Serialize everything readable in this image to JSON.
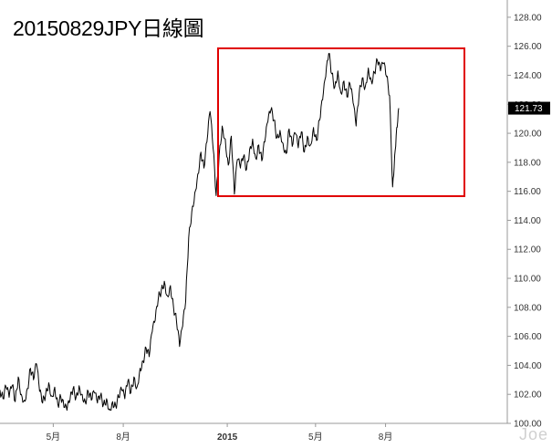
{
  "chart_data": {
    "type": "line",
    "title": "20150829JPY日線圖",
    "last_price_label": "121.73",
    "watermark": "Joe",
    "ylim": [
      100,
      129
    ],
    "y_ticks": [
      "128.00",
      "126.00",
      "124.00",
      "122.00",
      "120.00",
      "118.00",
      "116.00",
      "114.00",
      "112.00",
      "110.00",
      "108.00",
      "106.00",
      "104.00",
      "102.00",
      "100.00"
    ],
    "x_ticks": [
      {
        "label": "5月",
        "t": 0.105,
        "bold": false
      },
      {
        "label": "8月",
        "t": 0.243,
        "bold": false
      },
      {
        "label": "2015",
        "t": 0.448,
        "bold": true
      },
      {
        "label": "5月",
        "t": 0.622,
        "bold": false
      },
      {
        "label": "8月",
        "t": 0.76,
        "bold": false
      }
    ],
    "x_range": [
      0,
      1
    ],
    "series": [
      {
        "color": "#000000",
        "points": [
          [
            0.0,
            102.3
          ],
          [
            0.006,
            101.7
          ],
          [
            0.012,
            102.5
          ],
          [
            0.018,
            101.8
          ],
          [
            0.024,
            102.6
          ],
          [
            0.03,
            101.5
          ],
          [
            0.036,
            103.2
          ],
          [
            0.042,
            102.0
          ],
          [
            0.048,
            101.6
          ],
          [
            0.054,
            102.4
          ],
          [
            0.06,
            103.8
          ],
          [
            0.066,
            103.0
          ],
          [
            0.072,
            104.1
          ],
          [
            0.078,
            102.2
          ],
          [
            0.084,
            101.4
          ],
          [
            0.09,
            102.0
          ],
          [
            0.096,
            102.8
          ],
          [
            0.102,
            101.9
          ],
          [
            0.108,
            102.5
          ],
          [
            0.114,
            101.3
          ],
          [
            0.12,
            101.8
          ],
          [
            0.126,
            101.1
          ],
          [
            0.132,
            100.9
          ],
          [
            0.138,
            101.6
          ],
          [
            0.144,
            102.4
          ],
          [
            0.15,
            101.8
          ],
          [
            0.156,
            102.6
          ],
          [
            0.162,
            102.0
          ],
          [
            0.168,
            101.5
          ],
          [
            0.174,
            102.2
          ],
          [
            0.18,
            101.6
          ],
          [
            0.186,
            102.1
          ],
          [
            0.192,
            101.4
          ],
          [
            0.198,
            101.9
          ],
          [
            0.204,
            101.3
          ],
          [
            0.21,
            101.7
          ],
          [
            0.216,
            101.0
          ],
          [
            0.222,
            101.5
          ],
          [
            0.228,
            101.2
          ],
          [
            0.234,
            101.8
          ],
          [
            0.24,
            102.3
          ],
          [
            0.246,
            101.7
          ],
          [
            0.252,
            102.9
          ],
          [
            0.258,
            102.1
          ],
          [
            0.264,
            103.2
          ],
          [
            0.27,
            102.5
          ],
          [
            0.276,
            103.8
          ],
          [
            0.282,
            104.3
          ],
          [
            0.288,
            105.2
          ],
          [
            0.294,
            104.6
          ],
          [
            0.3,
            106.3
          ],
          [
            0.306,
            107.1
          ],
          [
            0.312,
            108.6
          ],
          [
            0.318,
            109.2
          ],
          [
            0.324,
            109.8
          ],
          [
            0.33,
            108.8
          ],
          [
            0.336,
            109.5
          ],
          [
            0.342,
            108.0
          ],
          [
            0.348,
            107.0
          ],
          [
            0.354,
            105.3
          ],
          [
            0.36,
            106.7
          ],
          [
            0.366,
            108.4
          ],
          [
            0.372,
            112.8
          ],
          [
            0.378,
            114.6
          ],
          [
            0.384,
            115.9
          ],
          [
            0.39,
            117.2
          ],
          [
            0.396,
            118.7
          ],
          [
            0.402,
            117.6
          ],
          [
            0.408,
            119.4
          ],
          [
            0.414,
            121.5
          ],
          [
            0.42,
            119.0
          ],
          [
            0.426,
            115.7
          ],
          [
            0.432,
            118.5
          ],
          [
            0.438,
            120.5
          ],
          [
            0.444,
            119.6
          ],
          [
            0.45,
            117.8
          ],
          [
            0.456,
            119.8
          ],
          [
            0.462,
            115.8
          ],
          [
            0.468,
            118.2
          ],
          [
            0.474,
            117.6
          ],
          [
            0.48,
            118.4
          ],
          [
            0.486,
            117.5
          ],
          [
            0.492,
            118.9
          ],
          [
            0.498,
            119.6
          ],
          [
            0.504,
            118.3
          ],
          [
            0.51,
            119.2
          ],
          [
            0.516,
            118.1
          ],
          [
            0.522,
            119.4
          ],
          [
            0.528,
            120.8
          ],
          [
            0.534,
            121.6
          ],
          [
            0.54,
            120.9
          ],
          [
            0.546,
            119.7
          ],
          [
            0.552,
            120.2
          ],
          [
            0.558,
            119.3
          ],
          [
            0.564,
            118.6
          ],
          [
            0.57,
            120.3
          ],
          [
            0.576,
            119.1
          ],
          [
            0.582,
            120.0
          ],
          [
            0.588,
            119.0
          ],
          [
            0.594,
            120.1
          ],
          [
            0.6,
            118.7
          ],
          [
            0.606,
            119.8
          ],
          [
            0.612,
            119.2
          ],
          [
            0.618,
            120.4
          ],
          [
            0.624,
            119.5
          ],
          [
            0.63,
            120.9
          ],
          [
            0.636,
            122.3
          ],
          [
            0.642,
            123.9
          ],
          [
            0.648,
            125.5
          ],
          [
            0.654,
            124.1
          ],
          [
            0.66,
            123.2
          ],
          [
            0.666,
            124.3
          ],
          [
            0.672,
            122.8
          ],
          [
            0.678,
            123.6
          ],
          [
            0.684,
            122.5
          ],
          [
            0.69,
            123.4
          ],
          [
            0.696,
            122.1
          ],
          [
            0.702,
            120.5
          ],
          [
            0.708,
            122.7
          ],
          [
            0.714,
            123.8
          ],
          [
            0.72,
            123.2
          ],
          [
            0.726,
            124.5
          ],
          [
            0.732,
            123.6
          ],
          [
            0.738,
            124.2
          ],
          [
            0.744,
            125.0
          ],
          [
            0.75,
            124.3
          ],
          [
            0.756,
            124.8
          ],
          [
            0.762,
            123.9
          ],
          [
            0.768,
            122.6
          ],
          [
            0.774,
            116.3
          ],
          [
            0.778,
            118.5
          ],
          [
            0.782,
            120.4
          ],
          [
            0.786,
            121.73
          ]
        ]
      }
    ]
  }
}
